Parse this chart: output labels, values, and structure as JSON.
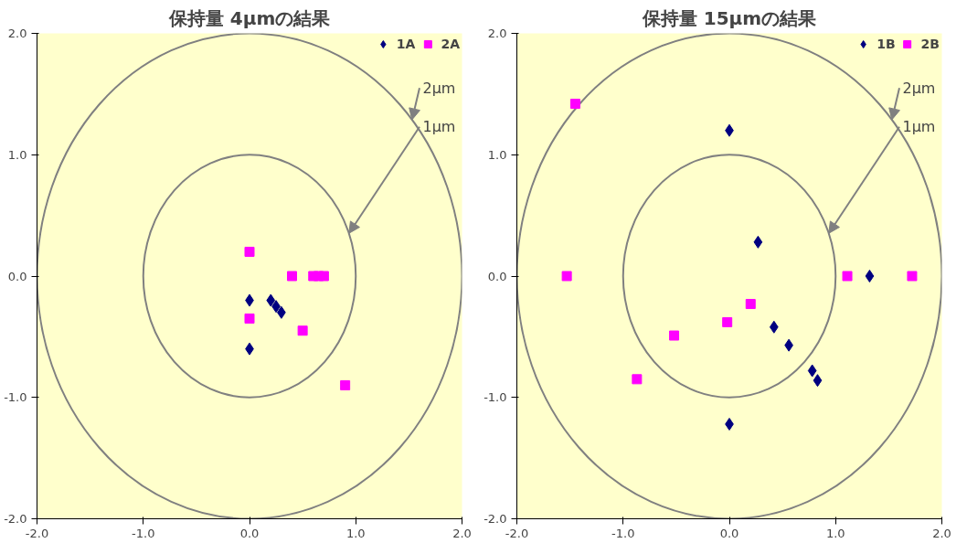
{
  "chart_data": [
    {
      "type": "scatter",
      "title": "保持量 4μmの結果",
      "xlim": [
        -2,
        2
      ],
      "ylim": [
        -2,
        2
      ],
      "xticks": [
        {
          "value": -2,
          "label": "-2.0"
        },
        {
          "value": -1,
          "label": "-1.0"
        },
        {
          "value": 0,
          "label": "0.0"
        },
        {
          "value": 1,
          "label": "1.0"
        },
        {
          "value": 2,
          "label": "2.0"
        }
      ],
      "yticks": [
        {
          "value": -2,
          "label": "-2.0"
        },
        {
          "value": -1,
          "label": "-1.0"
        },
        {
          "value": 0,
          "label": "0.0"
        },
        {
          "value": 1,
          "label": "1.0"
        },
        {
          "value": 2,
          "label": "2.0"
        }
      ],
      "grid": false,
      "legend": "top right",
      "series": [
        {
          "name": "1A",
          "color": "#000080",
          "marker": "diamond",
          "x": [
            0,
            0,
            0.2,
            0.25,
            0.3
          ],
          "values": [
            -0.2,
            -0.6,
            -0.2,
            -0.25,
            -0.3
          ]
        },
        {
          "name": "2A",
          "color": "#ff00ff",
          "marker": "square",
          "x": [
            0,
            0,
            0.4,
            0.6,
            0.65,
            0.7,
            0.5,
            0.9
          ],
          "values": [
            0.2,
            -0.35,
            0,
            0,
            0,
            0,
            -0.45,
            -0.9
          ]
        }
      ],
      "annotations": [
        "2μm",
        "1μm"
      ]
    },
    {
      "type": "scatter",
      "title": "保持量 15μmの結果",
      "xlim": [
        -2,
        2
      ],
      "ylim": [
        -2,
        2
      ],
      "xticks": [
        {
          "value": -2,
          "label": "-2.0"
        },
        {
          "value": -1,
          "label": "-1.0"
        },
        {
          "value": 0,
          "label": "0.0"
        },
        {
          "value": 1,
          "label": "1.0"
        },
        {
          "value": 2,
          "label": "2.0"
        }
      ],
      "yticks": [
        {
          "value": -2,
          "label": "-2.0"
        },
        {
          "value": -1,
          "label": "-1.0"
        },
        {
          "value": 0,
          "label": "0.0"
        },
        {
          "value": 1,
          "label": "1.0"
        },
        {
          "value": 2,
          "label": "2.0"
        }
      ],
      "grid": false,
      "legend": "top right",
      "series": [
        {
          "name": "1B",
          "color": "#000080",
          "marker": "diamond",
          "x": [
            0,
            0.27,
            0.42,
            0.56,
            0.78,
            0.83,
            0,
            1.32
          ],
          "values": [
            1.2,
            0.28,
            -0.42,
            -0.57,
            -0.78,
            -0.86,
            -1.22,
            0
          ]
        },
        {
          "name": "2B",
          "color": "#ff00ff",
          "marker": "square",
          "x": [
            -1.45,
            -1.53,
            -0.52,
            -0.87,
            -0.02,
            0.2,
            1.11,
            1.72
          ],
          "values": [
            1.42,
            0,
            -0.49,
            -0.85,
            -0.38,
            -0.23,
            0,
            0
          ]
        }
      ],
      "annotations": [
        "2μm",
        "1μm"
      ]
    }
  ]
}
